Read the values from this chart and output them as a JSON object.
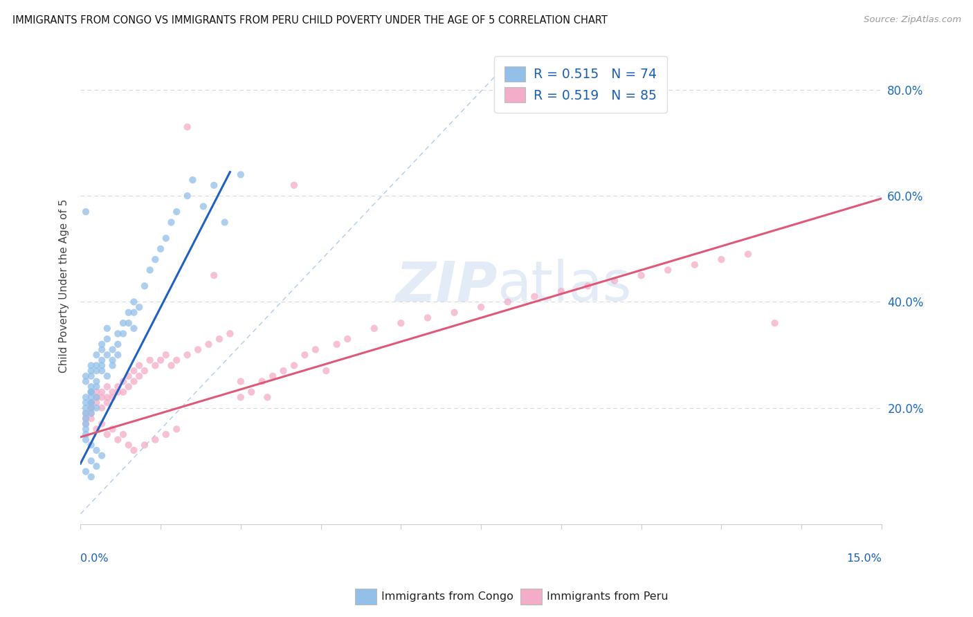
{
  "title": "IMMIGRANTS FROM CONGO VS IMMIGRANTS FROM PERU CHILD POVERTY UNDER THE AGE OF 5 CORRELATION CHART",
  "source": "Source: ZipAtlas.com",
  "ylabel": "Child Poverty Under the Age of 5",
  "xlim": [
    0.0,
    0.15
  ],
  "ylim": [
    -0.02,
    0.88
  ],
  "congo_color": "#92c0e8",
  "peru_color": "#f4adc8",
  "congo_line_color": "#2060c0",
  "peru_line_color": "#e05878",
  "diag_color": "#a8c4e8",
  "legend_r_congo": "0.515",
  "legend_n_congo": "74",
  "legend_r_peru": "0.519",
  "legend_n_peru": "85",
  "watermark_zip": "ZIP",
  "watermark_atlas": "atlas",
  "grid_color": "#d8d8d8",
  "ytick_vals": [
    0.0,
    0.2,
    0.4,
    0.6,
    0.8
  ],
  "ytick_labels": [
    "",
    "20.0%",
    "40.0%",
    "60.0%",
    "80.0%"
  ],
  "congo_x": [
    0.002,
    0.001,
    0.001,
    0.002,
    0.001,
    0.002,
    0.001,
    0.001,
    0.002,
    0.001,
    0.001,
    0.002,
    0.001,
    0.002,
    0.002,
    0.001,
    0.002,
    0.001,
    0.001,
    0.002,
    0.003,
    0.002,
    0.003,
    0.002,
    0.003,
    0.003,
    0.003,
    0.002,
    0.003,
    0.003,
    0.004,
    0.004,
    0.004,
    0.004,
    0.005,
    0.004,
    0.005,
    0.005,
    0.005,
    0.006,
    0.006,
    0.006,
    0.007,
    0.007,
    0.007,
    0.008,
    0.008,
    0.009,
    0.009,
    0.01,
    0.01,
    0.01,
    0.011,
    0.012,
    0.013,
    0.014,
    0.015,
    0.016,
    0.017,
    0.018,
    0.02,
    0.021,
    0.023,
    0.025,
    0.027,
    0.03,
    0.001,
    0.002,
    0.003,
    0.004,
    0.002,
    0.003,
    0.001,
    0.002
  ],
  "congo_y": [
    0.27,
    0.25,
    0.26,
    0.28,
    0.22,
    0.23,
    0.21,
    0.2,
    0.24,
    0.19,
    0.18,
    0.22,
    0.17,
    0.21,
    0.2,
    0.16,
    0.23,
    0.15,
    0.14,
    0.19,
    0.27,
    0.26,
    0.25,
    0.23,
    0.28,
    0.24,
    0.22,
    0.21,
    0.3,
    0.2,
    0.32,
    0.29,
    0.31,
    0.28,
    0.33,
    0.27,
    0.3,
    0.26,
    0.35,
    0.31,
    0.29,
    0.28,
    0.34,
    0.32,
    0.3,
    0.36,
    0.34,
    0.38,
    0.36,
    0.4,
    0.38,
    0.35,
    0.39,
    0.43,
    0.46,
    0.48,
    0.5,
    0.52,
    0.55,
    0.57,
    0.6,
    0.63,
    0.58,
    0.62,
    0.55,
    0.64,
    0.57,
    0.13,
    0.12,
    0.11,
    0.1,
    0.09,
    0.08,
    0.07
  ],
  "peru_x": [
    0.001,
    0.001,
    0.002,
    0.001,
    0.002,
    0.002,
    0.003,
    0.002,
    0.003,
    0.003,
    0.004,
    0.004,
    0.004,
    0.005,
    0.005,
    0.005,
    0.006,
    0.006,
    0.007,
    0.007,
    0.008,
    0.008,
    0.009,
    0.009,
    0.01,
    0.01,
    0.011,
    0.011,
    0.012,
    0.013,
    0.014,
    0.015,
    0.016,
    0.017,
    0.018,
    0.02,
    0.022,
    0.024,
    0.026,
    0.028,
    0.03,
    0.032,
    0.034,
    0.036,
    0.038,
    0.04,
    0.042,
    0.044,
    0.046,
    0.048,
    0.05,
    0.055,
    0.06,
    0.065,
    0.07,
    0.075,
    0.08,
    0.085,
    0.09,
    0.095,
    0.1,
    0.105,
    0.11,
    0.115,
    0.12,
    0.125,
    0.13,
    0.002,
    0.003,
    0.004,
    0.005,
    0.006,
    0.007,
    0.008,
    0.009,
    0.01,
    0.012,
    0.014,
    0.016,
    0.018,
    0.02,
    0.025,
    0.03,
    0.035,
    0.04
  ],
  "peru_y": [
    0.19,
    0.17,
    0.2,
    0.18,
    0.21,
    0.19,
    0.22,
    0.2,
    0.23,
    0.21,
    0.22,
    0.2,
    0.23,
    0.24,
    0.22,
    0.21,
    0.23,
    0.22,
    0.24,
    0.23,
    0.25,
    0.23,
    0.26,
    0.24,
    0.25,
    0.27,
    0.26,
    0.28,
    0.27,
    0.29,
    0.28,
    0.29,
    0.3,
    0.28,
    0.29,
    0.3,
    0.31,
    0.32,
    0.33,
    0.34,
    0.22,
    0.23,
    0.25,
    0.26,
    0.27,
    0.28,
    0.3,
    0.31,
    0.27,
    0.32,
    0.33,
    0.35,
    0.36,
    0.37,
    0.38,
    0.39,
    0.4,
    0.41,
    0.42,
    0.43,
    0.44,
    0.45,
    0.46,
    0.47,
    0.48,
    0.49,
    0.36,
    0.18,
    0.16,
    0.17,
    0.15,
    0.16,
    0.14,
    0.15,
    0.13,
    0.12,
    0.13,
    0.14,
    0.15,
    0.16,
    0.73,
    0.45,
    0.25,
    0.22,
    0.62
  ]
}
